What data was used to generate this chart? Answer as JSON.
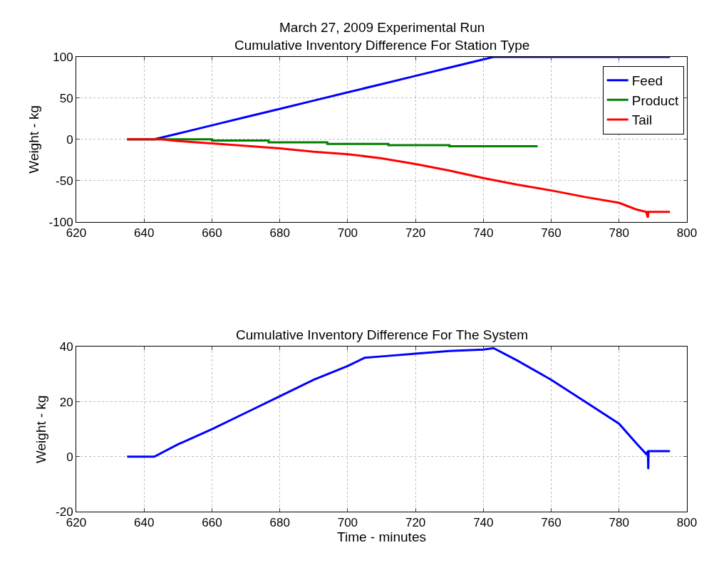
{
  "chart_data": [
    {
      "type": "line",
      "title": "March 27, 2009 Experimental Run",
      "subtitle": "Cumulative Inventory Difference For Station Type",
      "ylabel": "Weight - kg",
      "xlim": [
        620,
        800
      ],
      "xticks": [
        620,
        640,
        660,
        680,
        700,
        720,
        740,
        760,
        780,
        800
      ],
      "ylim": [
        -100,
        100
      ],
      "yticks": [
        -100,
        -50,
        0,
        50,
        100
      ],
      "grid": true,
      "legend": "top right",
      "line_style": "solid",
      "series": [
        {
          "name": "Feed",
          "color": "#0000ff",
          "x": [
            635,
            643,
            650,
            660,
            670,
            680,
            690,
            700,
            710,
            720,
            730,
            740,
            743,
            750,
            760,
            770,
            780,
            790,
            795
          ],
          "values": [
            0,
            0,
            7,
            17,
            27,
            37,
            47,
            57,
            67,
            77,
            87,
            97,
            100,
            100,
            100,
            100,
            100,
            100,
            100
          ]
        },
        {
          "name": "Product",
          "color": "#008000",
          "x": [
            635,
            660,
            660,
            676.7,
            676.7,
            694,
            694,
            712,
            712,
            730,
            730,
            756
          ],
          "values": [
            0,
            0,
            -1.4,
            -1.4,
            -3.7,
            -3.7,
            -5.6,
            -5.6,
            -7,
            -7,
            -8.4,
            -8.4
          ]
        },
        {
          "name": "Tail",
          "color": "#ff0000",
          "x": [
            635,
            645,
            650,
            660,
            670,
            680,
            690,
            700,
            710,
            720,
            730,
            740,
            750,
            760,
            770,
            780,
            785,
            788,
            788.5,
            788.6,
            795
          ],
          "values": [
            0,
            0,
            -2,
            -5,
            -8,
            -11,
            -15,
            -18,
            -23,
            -30,
            -38,
            -47,
            -55,
            -62,
            -70,
            -77,
            -85,
            -88,
            -95,
            -88,
            -88
          ]
        }
      ]
    },
    {
      "type": "line",
      "title": "Cumulative Inventory Difference For The System",
      "xlabel": "Time - minutes",
      "ylabel": "Weight - kg",
      "xlim": [
        620,
        800
      ],
      "xticks": [
        620,
        640,
        660,
        680,
        700,
        720,
        740,
        760,
        780,
        800
      ],
      "ylim": [
        -20,
        40
      ],
      "yticks": [
        -20,
        0,
        20,
        40
      ],
      "grid": true,
      "line_style": "solid",
      "series": [
        {
          "color": "#0000ff",
          "x": [
            635,
            643,
            650,
            660,
            670,
            680,
            690,
            700,
            705,
            710,
            720,
            730,
            740,
            743,
            750,
            760,
            770,
            780,
            785,
            788,
            788.5,
            788.6,
            788.7,
            795
          ],
          "values": [
            0,
            0,
            4.5,
            10,
            16,
            22,
            28,
            33,
            36,
            36.5,
            37.5,
            38.5,
            39,
            39.5,
            35,
            28,
            20,
            12,
            5,
            1,
            2,
            -4.5,
            2,
            2
          ]
        }
      ]
    }
  ]
}
